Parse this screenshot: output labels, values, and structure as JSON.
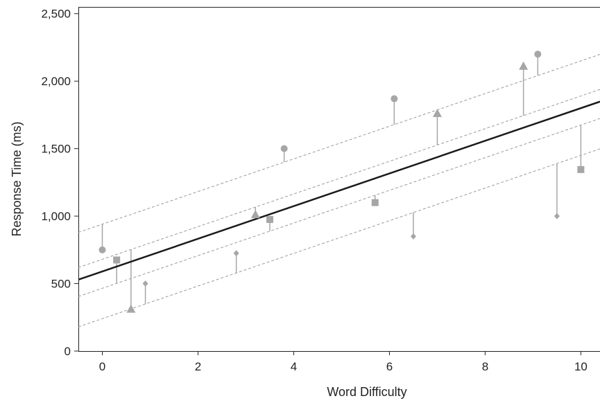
{
  "chart_data": {
    "type": "scatter",
    "xlabel": "Word Difficulty",
    "ylabel": "Response Time (ms)",
    "xlim": [
      -0.5,
      10.4
    ],
    "ylim": [
      0,
      2550
    ],
    "x_ticks": [
      0,
      2,
      4,
      6,
      8,
      10
    ],
    "y_ticks": [
      0,
      500,
      1000,
      1500,
      2000,
      2500
    ],
    "x_tick_labels": [
      "0",
      "2",
      "4",
      "6",
      "8",
      "10"
    ],
    "y_tick_labels": [
      "0",
      "500",
      "1,000",
      "1,500",
      "2,000",
      "2,500"
    ],
    "grid": false,
    "legend": "none",
    "colors": {
      "points": "#a6a6a6",
      "stems": "#a6a6a6",
      "main_line": "#1a1a1a",
      "group_lines": "#999999",
      "axis": "#222222"
    },
    "main_line": {
      "intercept": 590,
      "slope": 121
    },
    "group_lines": [
      {
        "marker": "circle",
        "intercept": 940,
        "slope": 121
      },
      {
        "marker": "triangle",
        "intercept": 680,
        "slope": 121
      },
      {
        "marker": "square",
        "intercept": 465,
        "slope": 121
      },
      {
        "marker": "diamond",
        "intercept": 240,
        "slope": 121
      }
    ],
    "series": [
      {
        "marker": "circle",
        "points": [
          {
            "x": 0,
            "y": 750,
            "fitted": 940
          },
          {
            "x": 3.8,
            "y": 1500,
            "fitted": 1400
          },
          {
            "x": 6.1,
            "y": 1870,
            "fitted": 1678
          },
          {
            "x": 9.1,
            "y": 2200,
            "fitted": 2041
          }
        ]
      },
      {
        "marker": "triangle",
        "points": [
          {
            "x": 0.6,
            "y": 310,
            "fitted": 753
          },
          {
            "x": 3.2,
            "y": 1010,
            "fitted": 1067
          },
          {
            "x": 7.0,
            "y": 1760,
            "fitted": 1527
          },
          {
            "x": 8.8,
            "y": 2110,
            "fitted": 1745
          }
        ]
      },
      {
        "marker": "square",
        "points": [
          {
            "x": 0.3,
            "y": 675,
            "fitted": 501
          },
          {
            "x": 3.5,
            "y": 975,
            "fitted": 889
          },
          {
            "x": 5.7,
            "y": 1100,
            "fitted": 1155
          },
          {
            "x": 10.0,
            "y": 1345,
            "fitted": 1675
          }
        ]
      },
      {
        "marker": "diamond",
        "points": [
          {
            "x": 0.9,
            "y": 500,
            "fitted": 349
          },
          {
            "x": 2.8,
            "y": 725,
            "fitted": 579
          },
          {
            "x": 6.5,
            "y": 850,
            "fitted": 1027
          },
          {
            "x": 9.5,
            "y": 1000,
            "fitted": 1390
          }
        ]
      }
    ]
  }
}
